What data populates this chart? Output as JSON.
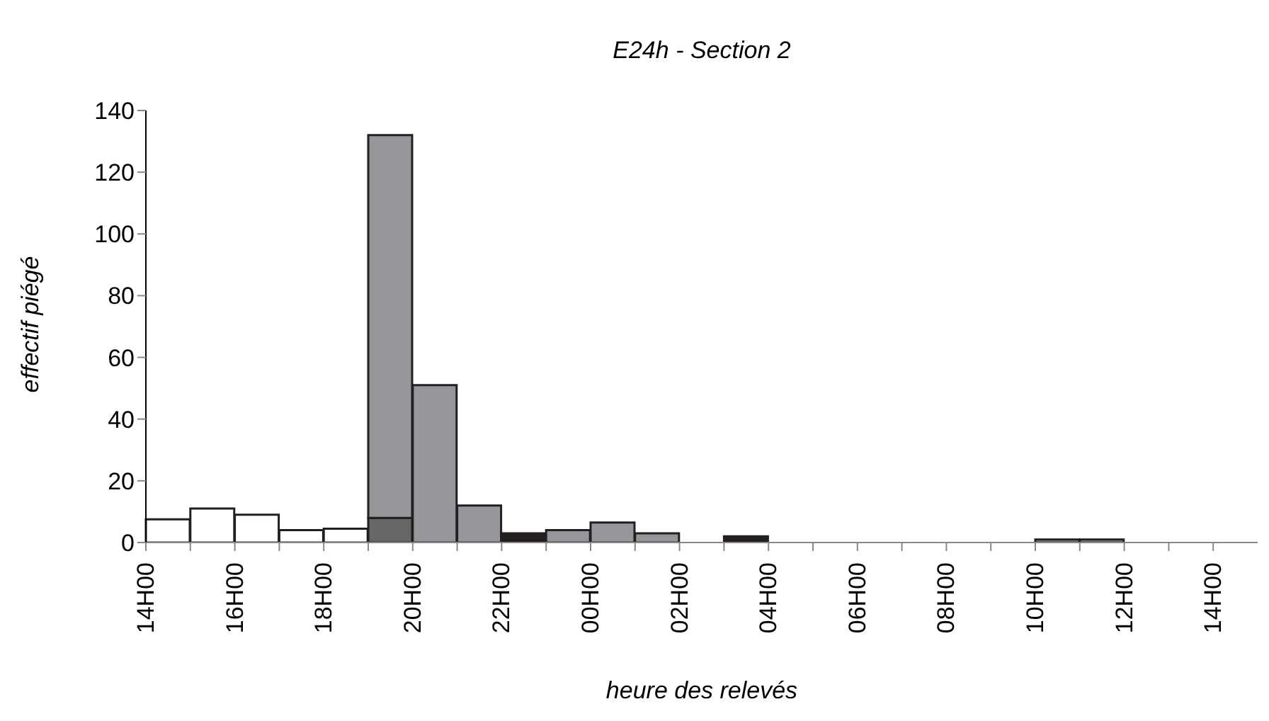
{
  "chart_data": {
    "type": "bar",
    "title": "E24h - Section 2",
    "xlabel": "heure des relevés",
    "ylabel": "effectif piégé",
    "stacked": true,
    "legend": false,
    "categories": [
      "14H00",
      null,
      "16H00",
      null,
      "18H00",
      null,
      "20H00",
      null,
      "22H00",
      null,
      "00H00",
      null,
      "02H00",
      null,
      "04H00",
      null,
      "06H00",
      null,
      "08H00",
      null,
      "10H00",
      null,
      "12H00",
      null,
      "14H00"
    ],
    "ylim": [
      0,
      140
    ],
    "yticks": [
      0,
      20,
      40,
      60,
      80,
      100,
      120,
      140
    ],
    "series": [
      {
        "color": "#ffffff",
        "values": [
          7.5,
          11,
          9,
          4,
          4.5,
          null,
          null,
          null,
          null,
          null,
          null,
          null,
          null,
          null,
          null,
          null,
          null,
          null,
          null,
          null,
          null,
          null,
          null,
          null,
          null
        ]
      },
      {
        "color": "#666666",
        "values": [
          null,
          null,
          null,
          null,
          null,
          8,
          null,
          null,
          null,
          null,
          null,
          null,
          null,
          null,
          null,
          null,
          null,
          null,
          null,
          null,
          null,
          null,
          null,
          null,
          null
        ]
      },
      {
        "color": "#96979b",
        "values": [
          null,
          null,
          null,
          null,
          null,
          124,
          51,
          12,
          null,
          4,
          6.5,
          3,
          null,
          null,
          null,
          null,
          null,
          null,
          null,
          null,
          1,
          1,
          null,
          null,
          null
        ]
      },
      {
        "color": "#231f20",
        "values": [
          null,
          null,
          null,
          null,
          null,
          null,
          null,
          null,
          3,
          null,
          null,
          null,
          null,
          2,
          null,
          null,
          null,
          null,
          null,
          null,
          null,
          null,
          null,
          null,
          null
        ]
      }
    ]
  }
}
